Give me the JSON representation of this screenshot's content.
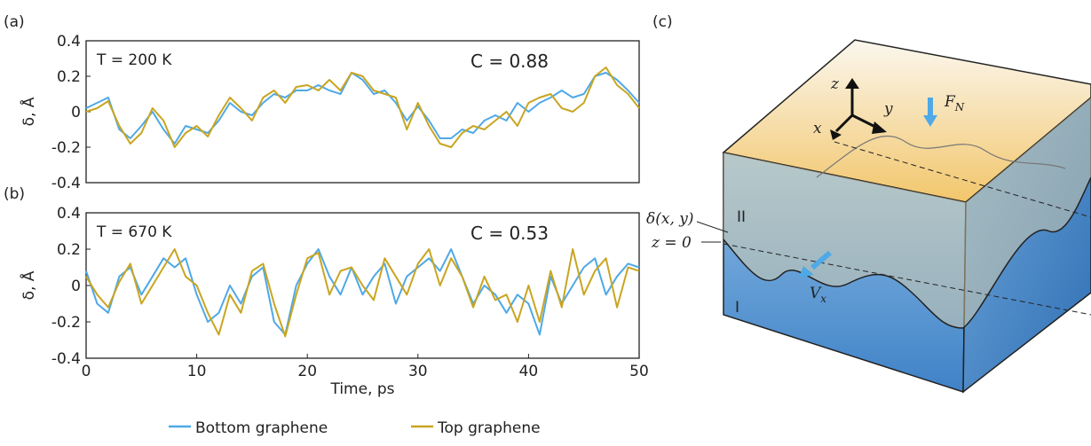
{
  "chart_data": [
    {
      "type": "line",
      "panel_label": "(a)",
      "ylabel": "δ, Å",
      "annotations": [
        "T = 200 K",
        "C = 0.88"
      ],
      "x": [
        0,
        1,
        2,
        3,
        4,
        5,
        6,
        7,
        8,
        9,
        10,
        11,
        12,
        13,
        14,
        15,
        16,
        17,
        18,
        19,
        20,
        21,
        22,
        23,
        24,
        25,
        26,
        27,
        28,
        29,
        30,
        31,
        32,
        33,
        34,
        35,
        36,
        37,
        38,
        39,
        40,
        41,
        42,
        43,
        44,
        45,
        46,
        47,
        48,
        49,
        50
      ],
      "xlim": [
        0,
        50
      ],
      "ylim": [
        -0.4,
        0.4
      ],
      "yticks": [
        0.4,
        0.2,
        0,
        -0.2,
        -0.4
      ],
      "series": [
        {
          "name": "Bottom graphene",
          "color": "#4fa9e6",
          "values": [
            0.02,
            0.05,
            0.08,
            -0.1,
            -0.15,
            -0.08,
            0.0,
            -0.1,
            -0.18,
            -0.08,
            -0.1,
            -0.12,
            -0.05,
            0.05,
            0.0,
            -0.02,
            0.05,
            0.1,
            0.08,
            0.12,
            0.12,
            0.15,
            0.12,
            0.1,
            0.22,
            0.18,
            0.1,
            0.12,
            0.05,
            -0.05,
            0.03,
            -0.05,
            -0.15,
            -0.15,
            -0.1,
            -0.12,
            -0.05,
            -0.02,
            -0.05,
            0.05,
            0.0,
            0.05,
            0.08,
            0.12,
            0.08,
            0.1,
            0.2,
            0.22,
            0.18,
            0.12,
            0.05
          ]
        },
        {
          "name": "Top graphene",
          "color": "#c9a520",
          "values": [
            0.0,
            0.02,
            0.06,
            -0.08,
            -0.18,
            -0.12,
            0.02,
            -0.05,
            -0.2,
            -0.12,
            -0.08,
            -0.14,
            -0.02,
            0.08,
            0.02,
            -0.05,
            0.08,
            0.12,
            0.05,
            0.14,
            0.15,
            0.12,
            0.18,
            0.12,
            0.22,
            0.2,
            0.12,
            0.1,
            0.08,
            -0.1,
            0.05,
            -0.08,
            -0.18,
            -0.2,
            -0.12,
            -0.08,
            -0.1,
            -0.05,
            0.0,
            -0.08,
            0.05,
            0.08,
            0.1,
            0.02,
            0.0,
            0.05,
            0.2,
            0.25,
            0.15,
            0.1,
            0.02
          ]
        }
      ]
    },
    {
      "type": "line",
      "panel_label": "(b)",
      "ylabel": "δ, Å",
      "xlabel": "Time, ps",
      "annotations": [
        "T = 670 K",
        "C = 0.53"
      ],
      "x": [
        0,
        1,
        2,
        3,
        4,
        5,
        6,
        7,
        8,
        9,
        10,
        11,
        12,
        13,
        14,
        15,
        16,
        17,
        18,
        19,
        20,
        21,
        22,
        23,
        24,
        25,
        26,
        27,
        28,
        29,
        30,
        31,
        32,
        33,
        34,
        35,
        36,
        37,
        38,
        39,
        40,
        41,
        42,
        43,
        44,
        45,
        46,
        47,
        48,
        49,
        50
      ],
      "xlim": [
        0,
        50
      ],
      "xticks": [
        0,
        10,
        20,
        30,
        40,
        50
      ],
      "ylim": [
        -0.4,
        0.4
      ],
      "yticks": [
        0.4,
        0.2,
        0,
        -0.2,
        -0.4
      ],
      "series": [
        {
          "color": "#4fa9e6",
          "values": [
            0.08,
            -0.1,
            -0.15,
            0.05,
            0.1,
            -0.05,
            0.05,
            0.15,
            0.1,
            0.15,
            -0.05,
            -0.2,
            -0.15,
            0.0,
            -0.1,
            0.05,
            0.1,
            -0.2,
            -0.27,
            0.0,
            0.12,
            0.2,
            0.05,
            -0.05,
            0.1,
            -0.05,
            0.05,
            0.12,
            -0.1,
            0.05,
            0.1,
            0.15,
            0.08,
            0.2,
            0.05,
            -0.1,
            0.0,
            -0.05,
            -0.15,
            -0.05,
            -0.1,
            -0.27,
            0.05,
            -0.1,
            0.0,
            0.1,
            0.15,
            -0.05,
            0.05,
            0.12,
            0.1
          ]
        },
        {
          "color": "#c9a520",
          "values": [
            0.05,
            -0.05,
            -0.12,
            0.02,
            0.12,
            -0.1,
            0.0,
            0.1,
            0.2,
            0.05,
            0.0,
            -0.15,
            -0.27,
            -0.05,
            -0.15,
            0.08,
            0.12,
            -0.1,
            -0.28,
            -0.05,
            0.15,
            0.18,
            -0.05,
            0.08,
            0.1,
            0.0,
            -0.08,
            0.15,
            0.05,
            -0.05,
            0.12,
            0.2,
            0.0,
            0.15,
            0.05,
            -0.12,
            0.05,
            -0.08,
            -0.05,
            -0.2,
            0.0,
            -0.2,
            0.08,
            -0.12,
            0.2,
            -0.05,
            0.08,
            0.15,
            -0.12,
            0.1,
            0.08
          ]
        }
      ]
    }
  ],
  "diagram": {
    "panel_label": "(c)",
    "axis_z": "z",
    "axis_y": "y",
    "axis_x": "x",
    "force": "F",
    "force_sub": "N",
    "surface": "δ(x, y)",
    "region_top": "II",
    "reference": "z = 0",
    "region_bottom": "I",
    "velocity": "V",
    "velocity_sub": "x"
  }
}
